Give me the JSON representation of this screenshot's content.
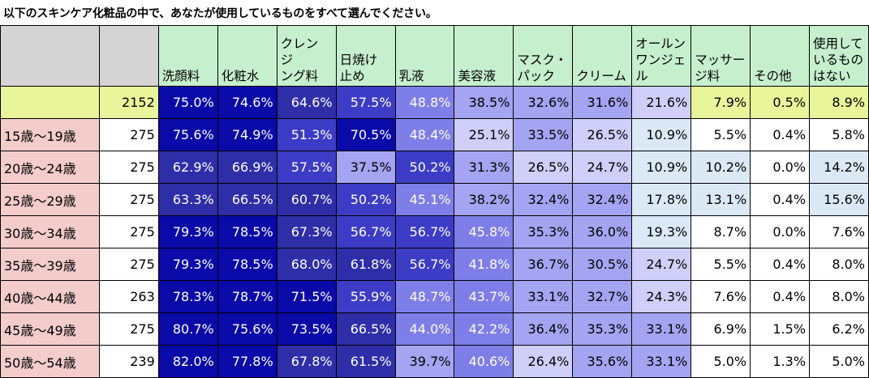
{
  "title": "以下のスキンケア化粧品の中で、あなたが使用しているものをすべて選んでください。",
  "chart_data": {
    "type": "table",
    "columns": [
      "洗顔料",
      "化粧水",
      "クレンジング料",
      "日焼け止め",
      "乳液",
      "美容液",
      "マスク・パック",
      "クリーム",
      "オールンワンジェル",
      "マッサージ料",
      "その他",
      "使用しているものはない"
    ],
    "column_lines": [
      [
        "洗顔料"
      ],
      [
        "化粧水"
      ],
      [
        "クレン",
        "ジ",
        "ング料"
      ],
      [
        "日焼け",
        "止め"
      ],
      [
        "乳液"
      ],
      [
        "美容液"
      ],
      [
        "マスク・",
        "パック"
      ],
      [
        "クリーム"
      ],
      [
        "オールン",
        "ワンジェ",
        "ル"
      ],
      [
        "マッサー",
        "ジ料"
      ],
      [
        "その他"
      ],
      [
        "使用して",
        "いるもの",
        "はない"
      ]
    ],
    "total": {
      "label": "",
      "n": "2152",
      "values": [
        "75.0%",
        "74.6%",
        "64.6%",
        "57.5%",
        "48.8%",
        "38.5%",
        "32.6%",
        "31.6%",
        "21.6%",
        "7.9%",
        "0.5%",
        "8.9%"
      ]
    },
    "rows": [
      {
        "label": "15歳～19歳",
        "n": "275",
        "values": [
          "75.6%",
          "74.9%",
          "51.3%",
          "70.5%",
          "48.4%",
          "25.1%",
          "33.5%",
          "26.5%",
          "10.9%",
          "5.5%",
          "0.4%",
          "5.8%"
        ]
      },
      {
        "label": "20歳～24歳",
        "n": "275",
        "values": [
          "62.9%",
          "66.9%",
          "57.5%",
          "37.5%",
          "50.2%",
          "31.3%",
          "26.5%",
          "24.7%",
          "10.9%",
          "10.2%",
          "0.0%",
          "14.2%"
        ]
      },
      {
        "label": "25歳～29歳",
        "n": "275",
        "values": [
          "63.3%",
          "66.5%",
          "60.7%",
          "50.2%",
          "45.1%",
          "38.2%",
          "32.4%",
          "32.4%",
          "17.8%",
          "13.1%",
          "0.4%",
          "15.6%"
        ]
      },
      {
        "label": "30歳～34歳",
        "n": "275",
        "values": [
          "79.3%",
          "78.5%",
          "67.3%",
          "56.7%",
          "56.7%",
          "45.8%",
          "35.3%",
          "36.0%",
          "19.3%",
          "8.7%",
          "0.0%",
          "7.6%"
        ]
      },
      {
        "label": "35歳～39歳",
        "n": "275",
        "values": [
          "79.3%",
          "78.5%",
          "68.0%",
          "61.8%",
          "56.7%",
          "41.8%",
          "36.7%",
          "30.5%",
          "24.7%",
          "5.5%",
          "0.4%",
          "8.0%"
        ]
      },
      {
        "label": "40歳～44歳",
        "n": "263",
        "values": [
          "78.3%",
          "78.7%",
          "71.5%",
          "55.9%",
          "48.7%",
          "43.7%",
          "33.1%",
          "32.7%",
          "24.3%",
          "7.6%",
          "0.4%",
          "8.0%"
        ]
      },
      {
        "label": "45歳～49歳",
        "n": "275",
        "values": [
          "80.7%",
          "75.6%",
          "73.5%",
          "66.5%",
          "44.0%",
          "42.2%",
          "36.4%",
          "35.3%",
          "33.1%",
          "6.9%",
          "1.5%",
          "6.2%"
        ]
      },
      {
        "label": "50歳～54歳",
        "n": "239",
        "values": [
          "82.0%",
          "77.8%",
          "67.8%",
          "61.5%",
          "39.7%",
          "40.6%",
          "26.4%",
          "35.6%",
          "33.1%",
          "5.0%",
          "1.3%",
          "5.0%"
        ]
      }
    ]
  }
}
